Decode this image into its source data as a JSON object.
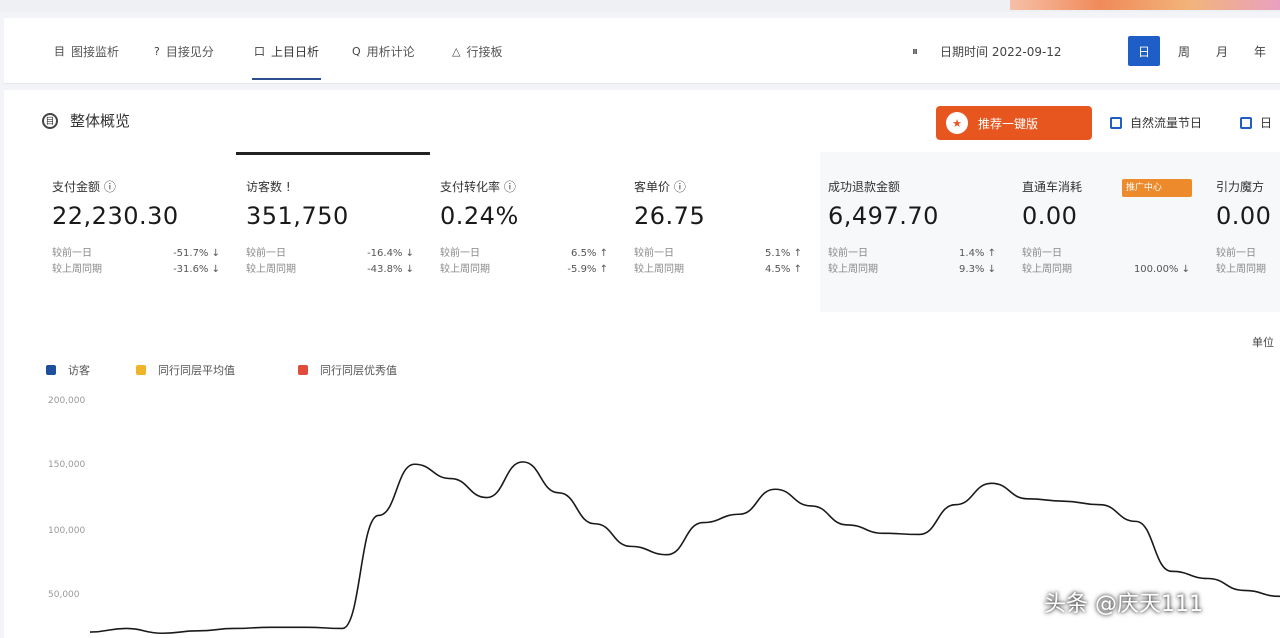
{
  "nav": {
    "tabs": [
      {
        "icon": "目",
        "label": "图接监析"
      },
      {
        "icon": "?",
        "label": "目接见分"
      },
      {
        "icon": "口",
        "label": "上目日析"
      },
      {
        "icon": "Q",
        "label": "用析计论"
      },
      {
        "icon": "△",
        "label": "行接板"
      }
    ],
    "right": {
      "icon": "⏸",
      "date_label": "日期时间 2022-09-12"
    },
    "segments": [
      "日",
      "周",
      "月",
      "年"
    ]
  },
  "section": {
    "title": "整体概览",
    "icon": "目"
  },
  "promo": {
    "label": "推荐一键版",
    "face": "★",
    "color": "#e8561f"
  },
  "checkboxes": [
    "自然流量节日",
    "日"
  ],
  "metrics": [
    {
      "label": "支付金额 ⓘ",
      "value": "22,230.30",
      "rows": [
        [
          "较前一日",
          "-51.7% ↓"
        ],
        [
          "较上周同期",
          "-31.6% ↓"
        ]
      ]
    },
    {
      "label": "访客数 !",
      "value": "351,750",
      "rows": [
        [
          "较前一日",
          "-16.4% ↓"
        ],
        [
          "较上周同期",
          "-43.8% ↓"
        ]
      ]
    },
    {
      "label": "支付转化率 ⓘ",
      "value": "0.24%",
      "rows": [
        [
          "较前一日",
          "6.5% ↑"
        ],
        [
          "较上周同期",
          "-5.9% ↑"
        ]
      ]
    },
    {
      "label": "客单价 ⓘ",
      "value": "26.75",
      "rows": [
        [
          "较前一日",
          "5.1% ↑"
        ],
        [
          "较上周同期",
          "4.5% ↑"
        ]
      ]
    },
    {
      "label": "成功退款金额",
      "value": "6,497.70",
      "rows": [
        [
          "较前一日",
          "1.4% ↑"
        ],
        [
          "较上周同期",
          "9.3% ↓"
        ]
      ]
    },
    {
      "label": "直通车消耗",
      "value": "0.00",
      "rows": [
        [
          "较前一日",
          ""
        ],
        [
          "较上周同期",
          "100.00% ↓"
        ]
      ],
      "badge": "推广中心"
    },
    {
      "label": "引力魔方",
      "value": "0.00",
      "rows": [
        [
          "较前一日",
          ""
        ],
        [
          "较上周同期",
          ""
        ]
      ]
    }
  ],
  "chart_legend": [
    {
      "label": "访客",
      "color": "#1f4e9c"
    },
    {
      "label": "同行同层平均值",
      "color": "#f0b429"
    },
    {
      "label": "同行同层优秀值",
      "color": "#e24a3b"
    }
  ],
  "right_note": "单位",
  "chart_data": {
    "type": "line",
    "yticks": [
      "200,000",
      "150,000",
      "100,000",
      "50,000"
    ],
    "ylim": [
      0,
      200000
    ],
    "series": [
      {
        "name": "访客",
        "color": "#1a1a1a",
        "values": [
          5000,
          8000,
          4000,
          6000,
          8000,
          9000,
          9000,
          8000,
          103000,
          146000,
          134000,
          118000,
          148000,
          122000,
          96000,
          77000,
          70000,
          97000,
          104000,
          125000,
          111000,
          95000,
          88000,
          87000,
          112000,
          130000,
          117000,
          115000,
          112000,
          98000,
          56000,
          50000,
          40000,
          35000
        ]
      }
    ]
  },
  "watermark": "头条 @庆天111"
}
